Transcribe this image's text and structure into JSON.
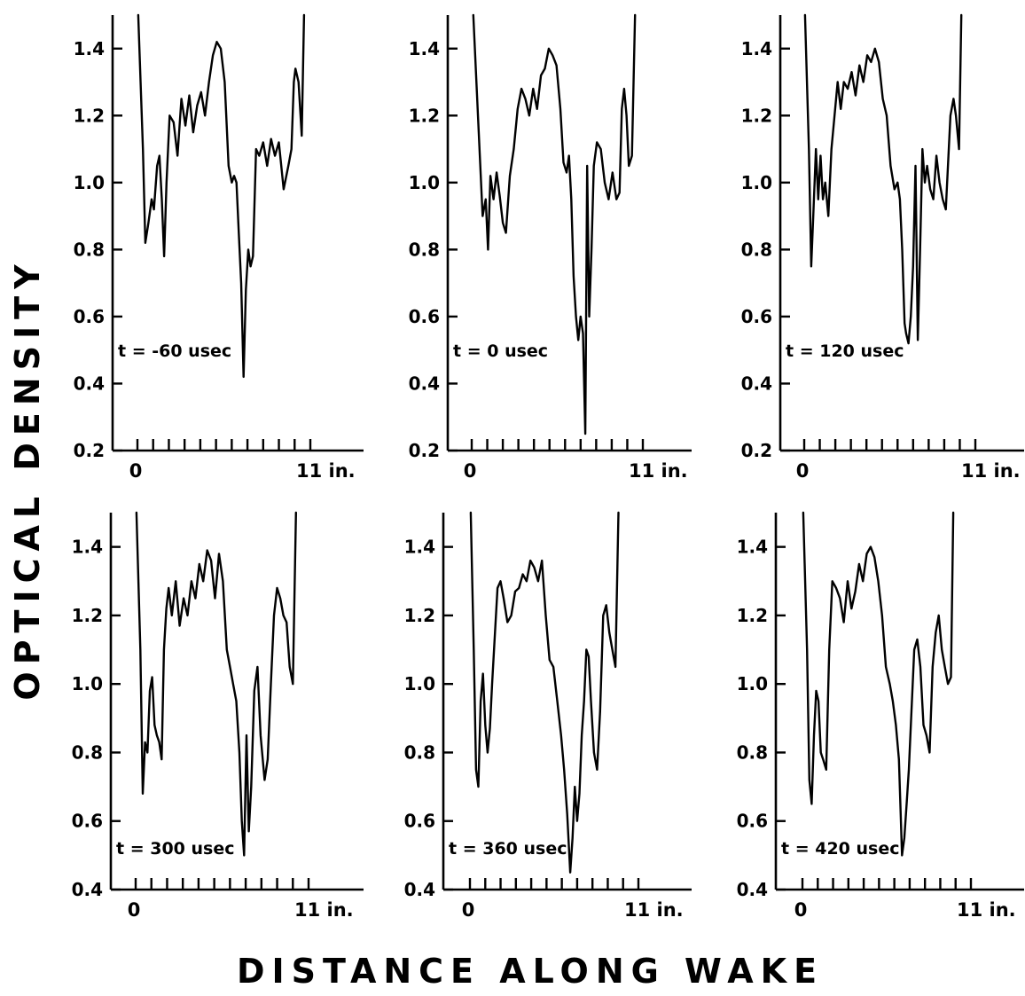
{
  "figure": {
    "ylabel": "OPTICAL DENSITY",
    "xlabel": "DISTANCE ALONG WAKE",
    "x_tick_labels": [
      "0",
      "11 in."
    ]
  },
  "chart_data": [
    {
      "type": "line",
      "annotation": "t = -60 usec",
      "xlim": [
        0,
        11
      ],
      "ylim": [
        0.2,
        1.5
      ],
      "yticks": [
        0.2,
        0.4,
        0.6,
        0.8,
        1.0,
        1.2,
        1.4
      ],
      "ytick_labels": [
        "0.2",
        "0.4",
        "0.6",
        "0.8",
        "1.0",
        "1.2",
        "1.4"
      ],
      "x": [
        0.05,
        0.35,
        0.5,
        0.7,
        0.9,
        1.05,
        1.25,
        1.4,
        1.55,
        1.7,
        1.85,
        2.05,
        2.3,
        2.55,
        2.8,
        3.05,
        3.3,
        3.55,
        3.8,
        4.05,
        4.3,
        4.55,
        4.8,
        5.05,
        5.3,
        5.55,
        5.8,
        6.0,
        6.15,
        6.3,
        6.45,
        6.6,
        6.75,
        6.9,
        7.05,
        7.2,
        7.35,
        7.55,
        7.75,
        8.0,
        8.25,
        8.5,
        8.75,
        9.0,
        9.3,
        9.6,
        9.8,
        9.95,
        10.05,
        10.25,
        10.45,
        10.6
      ],
      "y": [
        1.5,
        1.1,
        0.82,
        0.88,
        0.95,
        0.92,
        1.05,
        1.08,
        0.95,
        0.78,
        1.0,
        1.2,
        1.18,
        1.08,
        1.25,
        1.17,
        1.26,
        1.15,
        1.23,
        1.27,
        1.2,
        1.3,
        1.38,
        1.42,
        1.4,
        1.3,
        1.05,
        1.0,
        1.02,
        1.0,
        0.85,
        0.7,
        0.42,
        0.68,
        0.8,
        0.75,
        0.78,
        1.1,
        1.08,
        1.12,
        1.05,
        1.13,
        1.08,
        1.12,
        0.98,
        1.05,
        1.1,
        1.3,
        1.34,
        1.3,
        1.14,
        1.5
      ]
    },
    {
      "type": "line",
      "annotation": "t = 0 usec",
      "xlim": [
        0,
        11
      ],
      "ylim": [
        0.2,
        1.5
      ],
      "yticks": [
        0.2,
        0.4,
        0.6,
        0.8,
        1.0,
        1.2,
        1.4
      ],
      "ytick_labels": [
        "0.2",
        "0.4",
        "0.6",
        "0.8",
        "1.0",
        "1.2",
        "1.4"
      ],
      "x": [
        0.1,
        0.5,
        0.7,
        0.9,
        1.05,
        1.2,
        1.4,
        1.6,
        1.8,
        2.0,
        2.2,
        2.45,
        2.7,
        2.95,
        3.2,
        3.45,
        3.7,
        3.95,
        4.2,
        4.45,
        4.7,
        4.95,
        5.2,
        5.45,
        5.7,
        5.9,
        6.1,
        6.25,
        6.4,
        6.55,
        6.7,
        6.85,
        7.0,
        7.15,
        7.3,
        7.42,
        7.55,
        7.7,
        7.85,
        8.05,
        8.3,
        8.55,
        8.8,
        9.05,
        9.3,
        9.5,
        9.65,
        9.8,
        9.95,
        10.1,
        10.3,
        10.5
      ],
      "y": [
        1.5,
        1.1,
        0.9,
        0.95,
        0.8,
        1.02,
        0.95,
        1.03,
        0.96,
        0.88,
        0.85,
        1.02,
        1.1,
        1.22,
        1.28,
        1.25,
        1.2,
        1.28,
        1.22,
        1.32,
        1.34,
        1.4,
        1.38,
        1.35,
        1.22,
        1.06,
        1.03,
        1.08,
        0.95,
        0.72,
        0.6,
        0.53,
        0.6,
        0.55,
        0.25,
        1.05,
        0.6,
        0.8,
        1.05,
        1.12,
        1.1,
        1.0,
        0.95,
        1.03,
        0.95,
        0.97,
        1.22,
        1.28,
        1.2,
        1.05,
        1.08,
        1.5
      ]
    },
    {
      "type": "line",
      "annotation": "t = 120 usec",
      "xlim": [
        0,
        11
      ],
      "ylim": [
        0.2,
        1.5
      ],
      "yticks": [
        0.2,
        0.4,
        0.6,
        0.8,
        1.0,
        1.2,
        1.4
      ],
      "ytick_labels": [
        "0.2",
        "0.4",
        "0.6",
        "0.8",
        "1.0",
        "1.2",
        "1.4"
      ],
      "x": [
        0.05,
        0.3,
        0.45,
        0.6,
        0.75,
        0.9,
        1.05,
        1.2,
        1.35,
        1.55,
        1.75,
        1.95,
        2.15,
        2.35,
        2.55,
        2.8,
        3.05,
        3.3,
        3.55,
        3.8,
        4.05,
        4.3,
        4.55,
        4.8,
        5.05,
        5.3,
        5.55,
        5.8,
        6.0,
        6.15,
        6.3,
        6.45,
        6.55,
        6.7,
        6.85,
        7.0,
        7.15,
        7.3,
        7.45,
        7.6,
        7.75,
        7.9,
        8.1,
        8.3,
        8.5,
        8.7,
        8.9,
        9.1,
        9.4,
        9.6,
        9.75,
        9.95,
        10.1
      ],
      "y": [
        1.5,
        1.1,
        0.75,
        0.92,
        1.1,
        0.95,
        1.08,
        0.95,
        1.0,
        0.9,
        1.1,
        1.2,
        1.3,
        1.22,
        1.3,
        1.28,
        1.33,
        1.26,
        1.35,
        1.3,
        1.38,
        1.36,
        1.4,
        1.36,
        1.25,
        1.2,
        1.05,
        0.98,
        1.0,
        0.95,
        0.8,
        0.58,
        0.55,
        0.52,
        0.6,
        0.75,
        1.05,
        0.53,
        0.8,
        1.1,
        1.0,
        1.05,
        0.98,
        0.95,
        1.08,
        1.0,
        0.95,
        0.92,
        1.2,
        1.25,
        1.2,
        1.1,
        1.5
      ]
    },
    {
      "type": "line",
      "annotation": "t = 300 usec",
      "xlim": [
        0,
        11
      ],
      "ylim": [
        0.4,
        1.5
      ],
      "yticks": [
        0.4,
        0.6,
        0.8,
        1.0,
        1.2,
        1.4
      ],
      "ytick_labels": [
        "0.4",
        "0.6",
        "0.8",
        "1.0",
        "1.2",
        "1.4"
      ],
      "x": [
        0.05,
        0.3,
        0.45,
        0.6,
        0.75,
        0.9,
        1.05,
        1.2,
        1.35,
        1.5,
        1.65,
        1.8,
        1.95,
        2.1,
        2.3,
        2.55,
        2.8,
        3.05,
        3.3,
        3.55,
        3.8,
        4.05,
        4.3,
        4.55,
        4.8,
        5.05,
        5.3,
        5.55,
        5.8,
        6.0,
        6.2,
        6.4,
        6.6,
        6.75,
        6.9,
        7.05,
        7.2,
        7.35,
        7.55,
        7.75,
        7.95,
        8.2,
        8.4,
        8.6,
        8.8,
        9.0,
        9.2,
        9.4,
        9.6,
        9.8,
        10.0,
        10.2
      ],
      "y": [
        1.5,
        1.1,
        0.68,
        0.83,
        0.8,
        0.98,
        1.02,
        0.88,
        0.85,
        0.83,
        0.78,
        1.1,
        1.22,
        1.28,
        1.2,
        1.3,
        1.17,
        1.25,
        1.2,
        1.3,
        1.25,
        1.35,
        1.3,
        1.39,
        1.36,
        1.25,
        1.38,
        1.3,
        1.1,
        1.05,
        1.0,
        0.95,
        0.8,
        0.6,
        0.5,
        0.85,
        0.57,
        0.7,
        0.98,
        1.05,
        0.85,
        0.72,
        0.78,
        1.0,
        1.2,
        1.28,
        1.25,
        1.2,
        1.18,
        1.05,
        1.0,
        1.5
      ]
    },
    {
      "type": "line",
      "annotation": "t = 360 usec",
      "xlim": [
        0,
        11
      ],
      "ylim": [
        0.4,
        1.5
      ],
      "yticks": [
        0.4,
        0.6,
        0.8,
        1.0,
        1.2,
        1.4
      ],
      "ytick_labels": [
        "0.4",
        "0.6",
        "0.8",
        "1.0",
        "1.2",
        "1.4"
      ],
      "x": [
        0.05,
        0.25,
        0.4,
        0.55,
        0.7,
        0.85,
        1.0,
        1.15,
        1.3,
        1.45,
        1.6,
        1.8,
        2.0,
        2.2,
        2.45,
        2.7,
        2.95,
        3.2,
        3.45,
        3.7,
        3.95,
        4.2,
        4.45,
        4.7,
        4.95,
        5.2,
        5.45,
        5.7,
        5.95,
        6.15,
        6.35,
        6.55,
        6.7,
        6.85,
        7.0,
        7.15,
        7.3,
        7.45,
        7.6,
        7.75,
        7.9,
        8.1,
        8.3,
        8.5,
        8.7,
        8.9,
        9.1,
        9.3,
        9.5,
        9.7
      ],
      "y": [
        1.5,
        1.1,
        0.75,
        0.7,
        0.95,
        1.03,
        0.88,
        0.8,
        0.87,
        1.0,
        1.12,
        1.28,
        1.3,
        1.25,
        1.18,
        1.2,
        1.27,
        1.28,
        1.32,
        1.3,
        1.36,
        1.34,
        1.3,
        1.36,
        1.2,
        1.07,
        1.05,
        0.95,
        0.85,
        0.75,
        0.62,
        0.45,
        0.55,
        0.7,
        0.6,
        0.68,
        0.85,
        0.95,
        1.1,
        1.08,
        0.95,
        0.8,
        0.75,
        0.92,
        1.2,
        1.23,
        1.15,
        1.1,
        1.05,
        1.5
      ]
    },
    {
      "type": "line",
      "annotation": "t = 420 usec",
      "xlim": [
        0,
        11
      ],
      "ylim": [
        0.4,
        1.5
      ],
      "yticks": [
        0.4,
        0.6,
        0.8,
        1.0,
        1.2,
        1.4
      ],
      "ytick_labels": [
        "0.4",
        "0.6",
        "0.8",
        "1.0",
        "1.2",
        "1.4"
      ],
      "x": [
        0.05,
        0.3,
        0.45,
        0.6,
        0.75,
        0.9,
        1.05,
        1.2,
        1.35,
        1.55,
        1.75,
        1.95,
        2.2,
        2.45,
        2.7,
        2.95,
        3.2,
        3.45,
        3.7,
        3.95,
        4.2,
        4.45,
        4.7,
        4.95,
        5.2,
        5.45,
        5.7,
        5.9,
        6.1,
        6.3,
        6.5,
        6.65,
        6.8,
        6.95,
        7.1,
        7.3,
        7.5,
        7.7,
        7.9,
        8.1,
        8.3,
        8.5,
        8.7,
        8.9,
        9.1,
        9.3,
        9.5,
        9.7,
        9.85
      ],
      "y": [
        1.5,
        1.1,
        0.72,
        0.65,
        0.85,
        0.98,
        0.95,
        0.8,
        0.78,
        0.75,
        1.1,
        1.3,
        1.28,
        1.25,
        1.18,
        1.3,
        1.22,
        1.27,
        1.35,
        1.3,
        1.38,
        1.4,
        1.37,
        1.3,
        1.2,
        1.05,
        1.0,
        0.95,
        0.88,
        0.78,
        0.5,
        0.55,
        0.65,
        0.75,
        0.9,
        1.1,
        1.13,
        1.05,
        0.88,
        0.85,
        0.8,
        1.05,
        1.15,
        1.2,
        1.1,
        1.05,
        1.0,
        1.02,
        1.5
      ]
    }
  ]
}
